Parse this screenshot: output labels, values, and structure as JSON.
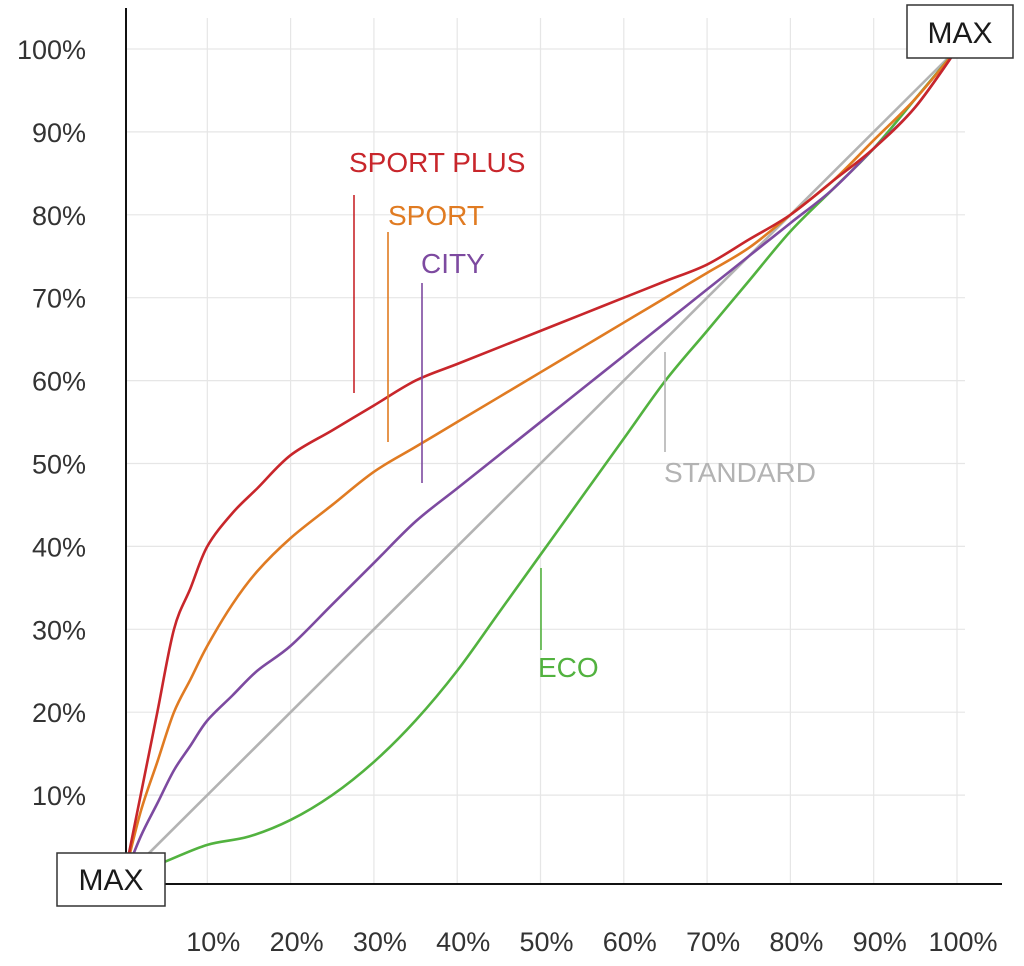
{
  "chart_data": {
    "type": "line",
    "title": "",
    "xlabel": "",
    "ylabel": "",
    "xlim": [
      0,
      100
    ],
    "ylim": [
      0,
      100
    ],
    "grid": true,
    "x_ticks": [
      "10%",
      "20%",
      "30%",
      "40%",
      "50%",
      "60%",
      "70%",
      "80%",
      "90%",
      "100%"
    ],
    "y_ticks": [
      "10%",
      "20%",
      "30%",
      "40%",
      "50%",
      "60%",
      "70%",
      "80%",
      "90%",
      "100%"
    ],
    "origin_label": "MAX",
    "end_label": "MAX",
    "series": [
      {
        "name": "SPORT PLUS",
        "color": "#c8262b",
        "label_point": [
          25,
          86
        ],
        "x": [
          0,
          2,
          4,
          6,
          8,
          10,
          13,
          16,
          20,
          25,
          30,
          35,
          40,
          45,
          50,
          55,
          60,
          65,
          70,
          75,
          80,
          85,
          90,
          95,
          100
        ],
        "y": [
          0,
          10,
          20,
          30,
          35,
          40,
          44,
          47,
          51,
          54,
          57,
          60,
          62,
          64,
          66,
          68,
          70,
          72,
          74,
          77,
          80,
          84,
          88,
          93,
          100
        ]
      },
      {
        "name": "SPORT",
        "color": "#e07b22",
        "label_point": [
          29,
          80
        ],
        "x": [
          0,
          2,
          4,
          6,
          8,
          10,
          13,
          16,
          20,
          25,
          30,
          35,
          40,
          45,
          50,
          55,
          60,
          65,
          70,
          75,
          80,
          85,
          90,
          95,
          100
        ],
        "y": [
          0,
          8,
          14,
          20,
          24,
          28,
          33,
          37,
          41,
          45,
          49,
          52,
          55,
          58,
          61,
          64,
          67,
          70,
          73,
          76,
          80,
          84,
          89,
          94,
          100
        ]
      },
      {
        "name": "CITY",
        "color": "#7d4aa0",
        "label_point": [
          33.5,
          74
        ],
        "x": [
          0,
          2,
          4,
          6,
          8,
          10,
          13,
          16,
          20,
          25,
          30,
          35,
          40,
          45,
          50,
          55,
          60,
          65,
          70,
          75,
          80,
          85,
          90,
          95,
          100
        ],
        "y": [
          0,
          5,
          9,
          13,
          16,
          19,
          22,
          25,
          28,
          33,
          38,
          43,
          47,
          51,
          55,
          59,
          63,
          67,
          71,
          75,
          79,
          83,
          88,
          93,
          100
        ]
      },
      {
        "name": "STANDARD",
        "color": "#b3b3b3",
        "label_point": [
          63,
          48
        ],
        "x": [
          0,
          100
        ],
        "y": [
          0,
          100
        ]
      },
      {
        "name": "ECO",
        "color": "#52b23f",
        "label_point": [
          47.5,
          25
        ],
        "x": [
          0,
          5,
          10,
          15,
          20,
          25,
          30,
          35,
          40,
          45,
          50,
          55,
          60,
          65,
          70,
          75,
          80,
          85,
          90,
          95,
          100
        ],
        "y": [
          0,
          2,
          4,
          5,
          7,
          10,
          14,
          19,
          25,
          32,
          39,
          46,
          53,
          60,
          66,
          72,
          78,
          83,
          88,
          94,
          100
        ]
      }
    ]
  }
}
